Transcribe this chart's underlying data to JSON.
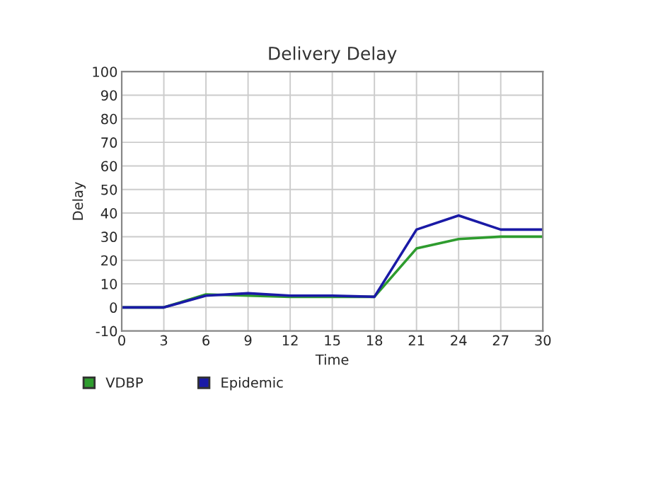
{
  "chart_data": {
    "type": "line",
    "title": "Delivery Delay",
    "xlabel": "Time",
    "ylabel": "Delay",
    "x": [
      0,
      3,
      6,
      9,
      12,
      15,
      18,
      21,
      24,
      27,
      30
    ],
    "series": [
      {
        "name": "VDBP",
        "color": "#2e9c2e",
        "values": [
          0,
          0,
          5.5,
          5,
          4.5,
          4.5,
          4.5,
          25,
          29,
          30,
          30
        ]
      },
      {
        "name": "Epidemic",
        "color": "#1a1aa6",
        "values": [
          0,
          0,
          5,
          6,
          5,
          5,
          4.5,
          33,
          39,
          33,
          33
        ]
      }
    ],
    "xlim": [
      0,
      30
    ],
    "xticks": [
      0,
      3,
      6,
      9,
      12,
      15,
      18,
      21,
      24,
      27,
      30
    ],
    "ylim": [
      -10,
      100
    ],
    "yticks": [
      -10,
      0,
      10,
      20,
      30,
      40,
      50,
      60,
      70,
      80,
      90,
      100
    ],
    "grid": true,
    "legend": "bottom",
    "marker": "none",
    "line_style": "solid"
  }
}
